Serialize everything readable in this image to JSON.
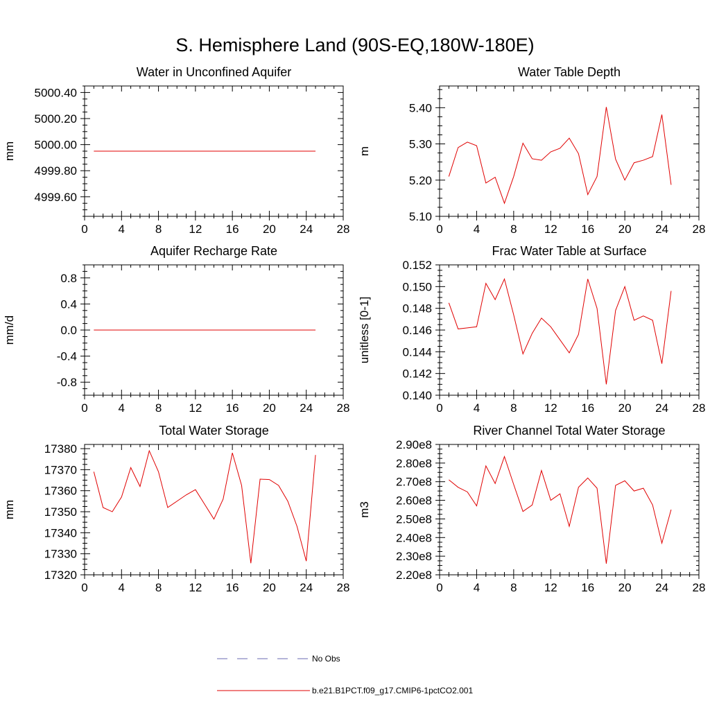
{
  "page": {
    "title": "S. Hemisphere Land (90S-EQ,180W-180E)"
  },
  "legend": [
    {
      "label": "No Obs",
      "color": "#6a6ab0",
      "style": "dashed"
    },
    {
      "label": "b.e21.B1PCT.f09_g17.CMIP6-1pctCO2.001",
      "color": "#e00000",
      "style": "solid"
    }
  ],
  "chart_data": [
    {
      "type": "line",
      "title": "Water in Unconfined Aquifer",
      "ylabel": "mm",
      "xlim": [
        0,
        28
      ],
      "xticks": [
        0,
        4,
        8,
        12,
        16,
        20,
        24,
        28
      ],
      "ylim": [
        4999.45,
        5000.45
      ],
      "yticks": [
        4999.6,
        4999.8,
        5000.0,
        5000.2,
        5000.4
      ],
      "ytick_labels": [
        "4999.60",
        "4999.80",
        "5000.00",
        "5000.20",
        "5000.40"
      ],
      "series": [
        {
          "color": "#e00000",
          "x": [
            1,
            2,
            3,
            4,
            5,
            6,
            7,
            8,
            9,
            10,
            11,
            12,
            13,
            14,
            15,
            16,
            17,
            18,
            19,
            20,
            21,
            22,
            23,
            24,
            25
          ],
          "values": [
            4999.95,
            4999.95,
            4999.95,
            4999.95,
            4999.95,
            4999.95,
            4999.95,
            4999.95,
            4999.95,
            4999.95,
            4999.95,
            4999.95,
            4999.95,
            4999.95,
            4999.95,
            4999.95,
            4999.95,
            4999.95,
            4999.95,
            4999.95,
            4999.95,
            4999.95,
            4999.95,
            4999.95,
            4999.95
          ]
        }
      ]
    },
    {
      "type": "line",
      "title": "Water Table Depth",
      "ylabel": "m",
      "xlim": [
        0,
        28
      ],
      "xticks": [
        0,
        4,
        8,
        12,
        16,
        20,
        24,
        28
      ],
      "ylim": [
        5.1,
        5.46
      ],
      "yticks": [
        5.1,
        5.2,
        5.3,
        5.4
      ],
      "ytick_labels": [
        "5.10",
        "5.20",
        "5.30",
        "5.40"
      ],
      "series": [
        {
          "color": "#e00000",
          "x": [
            1,
            2,
            3,
            4,
            5,
            6,
            7,
            8,
            9,
            10,
            11,
            12,
            13,
            14,
            15,
            16,
            17,
            18,
            19,
            20,
            21,
            22,
            23,
            24,
            25
          ],
          "values": [
            5.21,
            5.29,
            5.305,
            5.295,
            5.192,
            5.208,
            5.136,
            5.21,
            5.302,
            5.259,
            5.255,
            5.278,
            5.288,
            5.316,
            5.273,
            5.16,
            5.21,
            5.402,
            5.258,
            5.2,
            5.248,
            5.255,
            5.265,
            5.381,
            5.187
          ]
        }
      ]
    },
    {
      "type": "line",
      "title": "Aquifer Recharge Rate",
      "ylabel": "mm/d",
      "xlim": [
        0,
        28
      ],
      "xticks": [
        0,
        4,
        8,
        12,
        16,
        20,
        24,
        28
      ],
      "ylim": [
        -1.0,
        1.0
      ],
      "yticks": [
        -0.8,
        -0.4,
        0.0,
        0.4,
        0.8
      ],
      "ytick_labels": [
        "-0.8",
        "-0.4",
        "0.0",
        "0.4",
        "0.8"
      ],
      "series": [
        {
          "color": "#e00000",
          "x": [
            1,
            2,
            3,
            4,
            5,
            6,
            7,
            8,
            9,
            10,
            11,
            12,
            13,
            14,
            15,
            16,
            17,
            18,
            19,
            20,
            21,
            22,
            23,
            24,
            25
          ],
          "values": [
            0,
            0,
            0,
            0,
            0,
            0,
            0,
            0,
            0,
            0,
            0,
            0,
            0,
            0,
            0,
            0,
            0,
            0,
            0,
            0,
            0,
            0,
            0,
            0,
            0
          ]
        }
      ]
    },
    {
      "type": "line",
      "title": "Frac Water Table at Surface",
      "ylabel": "unitless [0-1]",
      "xlim": [
        0,
        28
      ],
      "xticks": [
        0,
        4,
        8,
        12,
        16,
        20,
        24,
        28
      ],
      "ylim": [
        0.14,
        0.152
      ],
      "yticks": [
        0.14,
        0.142,
        0.144,
        0.146,
        0.148,
        0.15,
        0.152
      ],
      "ytick_labels": [
        "0.140",
        "0.142",
        "0.144",
        "0.146",
        "0.148",
        "0.150",
        "0.152"
      ],
      "series": [
        {
          "color": "#e00000",
          "x": [
            1,
            2,
            3,
            4,
            5,
            6,
            7,
            8,
            9,
            10,
            11,
            12,
            13,
            14,
            15,
            16,
            17,
            18,
            19,
            20,
            21,
            22,
            23,
            24,
            25
          ],
          "values": [
            0.1485,
            0.1461,
            0.1462,
            0.1463,
            0.1503,
            0.1488,
            0.1507,
            0.1474,
            0.1438,
            0.1457,
            0.1471,
            0.1463,
            0.1451,
            0.1439,
            0.1456,
            0.1507,
            0.148,
            0.141,
            0.1478,
            0.15,
            0.1469,
            0.1473,
            0.1469,
            0.1429,
            0.1496
          ]
        }
      ]
    },
    {
      "type": "line",
      "title": "Total Water Storage",
      "ylabel": "mm",
      "xlim": [
        0,
        28
      ],
      "xticks": [
        0,
        4,
        8,
        12,
        16,
        20,
        24,
        28
      ],
      "ylim": [
        17320,
        17382
      ],
      "yticks": [
        17320,
        17330,
        17340,
        17350,
        17360,
        17370,
        17380
      ],
      "ytick_labels": [
        "17320",
        "17330",
        "17340",
        "17350",
        "17360",
        "17370",
        "17380"
      ],
      "series": [
        {
          "color": "#e00000",
          "x": [
            1,
            2,
            3,
            4,
            5,
            6,
            7,
            8,
            9,
            10,
            11,
            12,
            13,
            14,
            15,
            16,
            17,
            18,
            19,
            20,
            21,
            22,
            23,
            24,
            25
          ],
          "values": [
            17369,
            17352,
            17350,
            17357,
            17371,
            17362,
            17379,
            17369,
            17352,
            17355,
            17358,
            17360.5,
            17353.5,
            17346.5,
            17356,
            17378,
            17362.5,
            17325.5,
            17365.5,
            17365.3,
            17362.5,
            17355,
            17343,
            17326.5,
            17377
          ]
        }
      ]
    },
    {
      "type": "line",
      "title": "River Channel Total Water Storage",
      "ylabel": "m3",
      "xlim": [
        0,
        28
      ],
      "xticks": [
        0,
        4,
        8,
        12,
        16,
        20,
        24,
        28
      ],
      "ylim": [
        220000000.0,
        290000000.0
      ],
      "yticks": [
        220000000.0,
        230000000.0,
        240000000.0,
        250000000.0,
        260000000.0,
        270000000.0,
        280000000.0,
        290000000.0
      ],
      "ytick_labels": [
        "2.20e8",
        "2.30e8",
        "2.40e8",
        "2.50e8",
        "2.60e8",
        "2.70e8",
        "2.80e8",
        "2.90e8"
      ],
      "series": [
        {
          "color": "#e00000",
          "x": [
            1,
            2,
            3,
            4,
            5,
            6,
            7,
            8,
            9,
            10,
            11,
            12,
            13,
            14,
            15,
            16,
            17,
            18,
            19,
            20,
            21,
            22,
            23,
            24,
            25
          ],
          "values": [
            271000000.0,
            267000000.0,
            264500000.0,
            257000000.0,
            278500000.0,
            269000000.0,
            283500000.0,
            268500000.0,
            254000000.0,
            257500000.0,
            276000000.0,
            260000000.0,
            263500000.0,
            246000000.0,
            267000000.0,
            272000000.0,
            266500000.0,
            226000000.0,
            268000000.0,
            270500000.0,
            265000000.0,
            266500000.0,
            257500000.0,
            237000000.0,
            255000000.0
          ]
        }
      ]
    }
  ]
}
